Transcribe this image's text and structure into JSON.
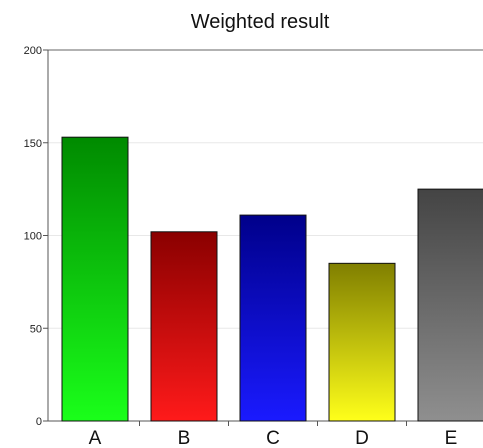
{
  "chart_data": {
    "type": "bar",
    "title": "Weighted result",
    "xlabel": "",
    "ylabel": "",
    "categories": [
      "A",
      "B",
      "C",
      "D",
      "E"
    ],
    "values": [
      153,
      102,
      111,
      85,
      125
    ],
    "ylim": [
      0,
      200
    ],
    "yticks": [
      "0",
      "50",
      "100",
      "150",
      "200"
    ],
    "ytick_values": [
      0,
      50,
      100,
      150,
      200
    ],
    "grid": true,
    "legend": "none",
    "bar_gradients": [
      {
        "top": "#008a00",
        "bottom": "#1aff1a"
      },
      {
        "top": "#8a0000",
        "bottom": "#ff1a1a"
      },
      {
        "top": "#00008a",
        "bottom": "#1a1aff"
      },
      {
        "top": "#807f00",
        "bottom": "#ffff1a"
      },
      {
        "top": "#444444",
        "bottom": "#8f8f8f"
      }
    ]
  }
}
